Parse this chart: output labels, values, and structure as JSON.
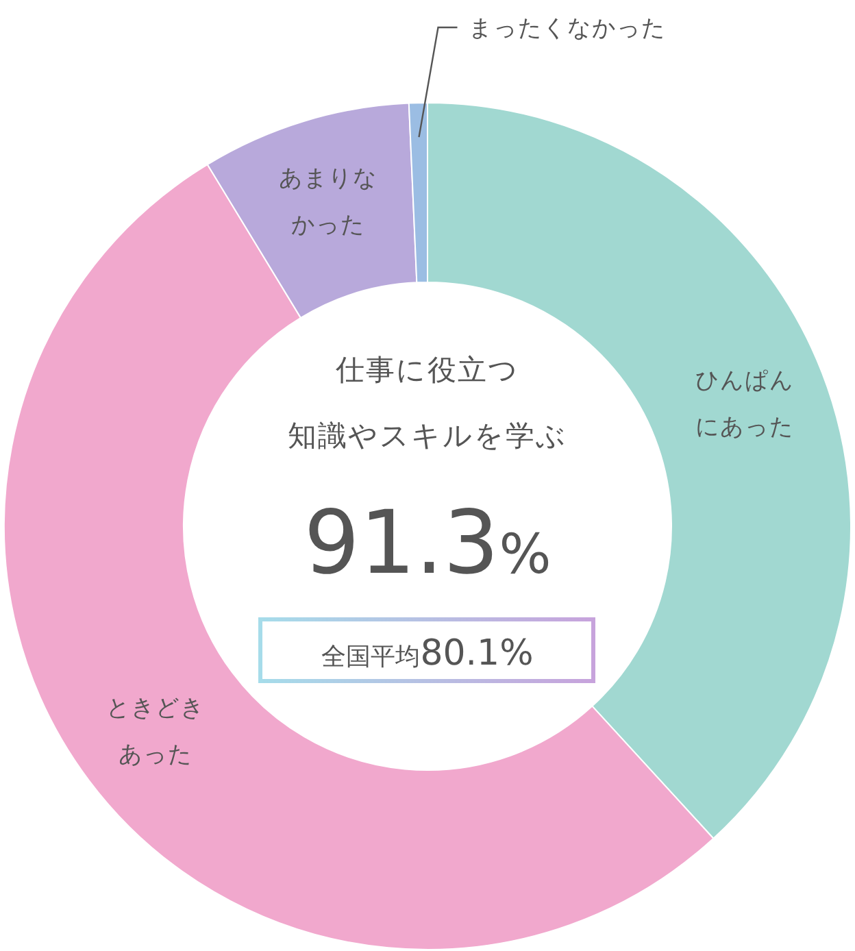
{
  "chart_data": {
    "type": "donut",
    "categories": [
      "ひんぱんにあった",
      "ときどきあった",
      "あまりなかった",
      "まったくなかった"
    ],
    "values": [
      38.2,
      53.1,
      8.0,
      0.7
    ],
    "colors": [
      "#a1d8d1",
      "#f1a8cd",
      "#b8a9db",
      "#9bbde3"
    ],
    "annotations": [
      "仕事に役立つ",
      "知識やスキルを学ぶ",
      "91.3%",
      "全国平均80.1%"
    ]
  }
}
